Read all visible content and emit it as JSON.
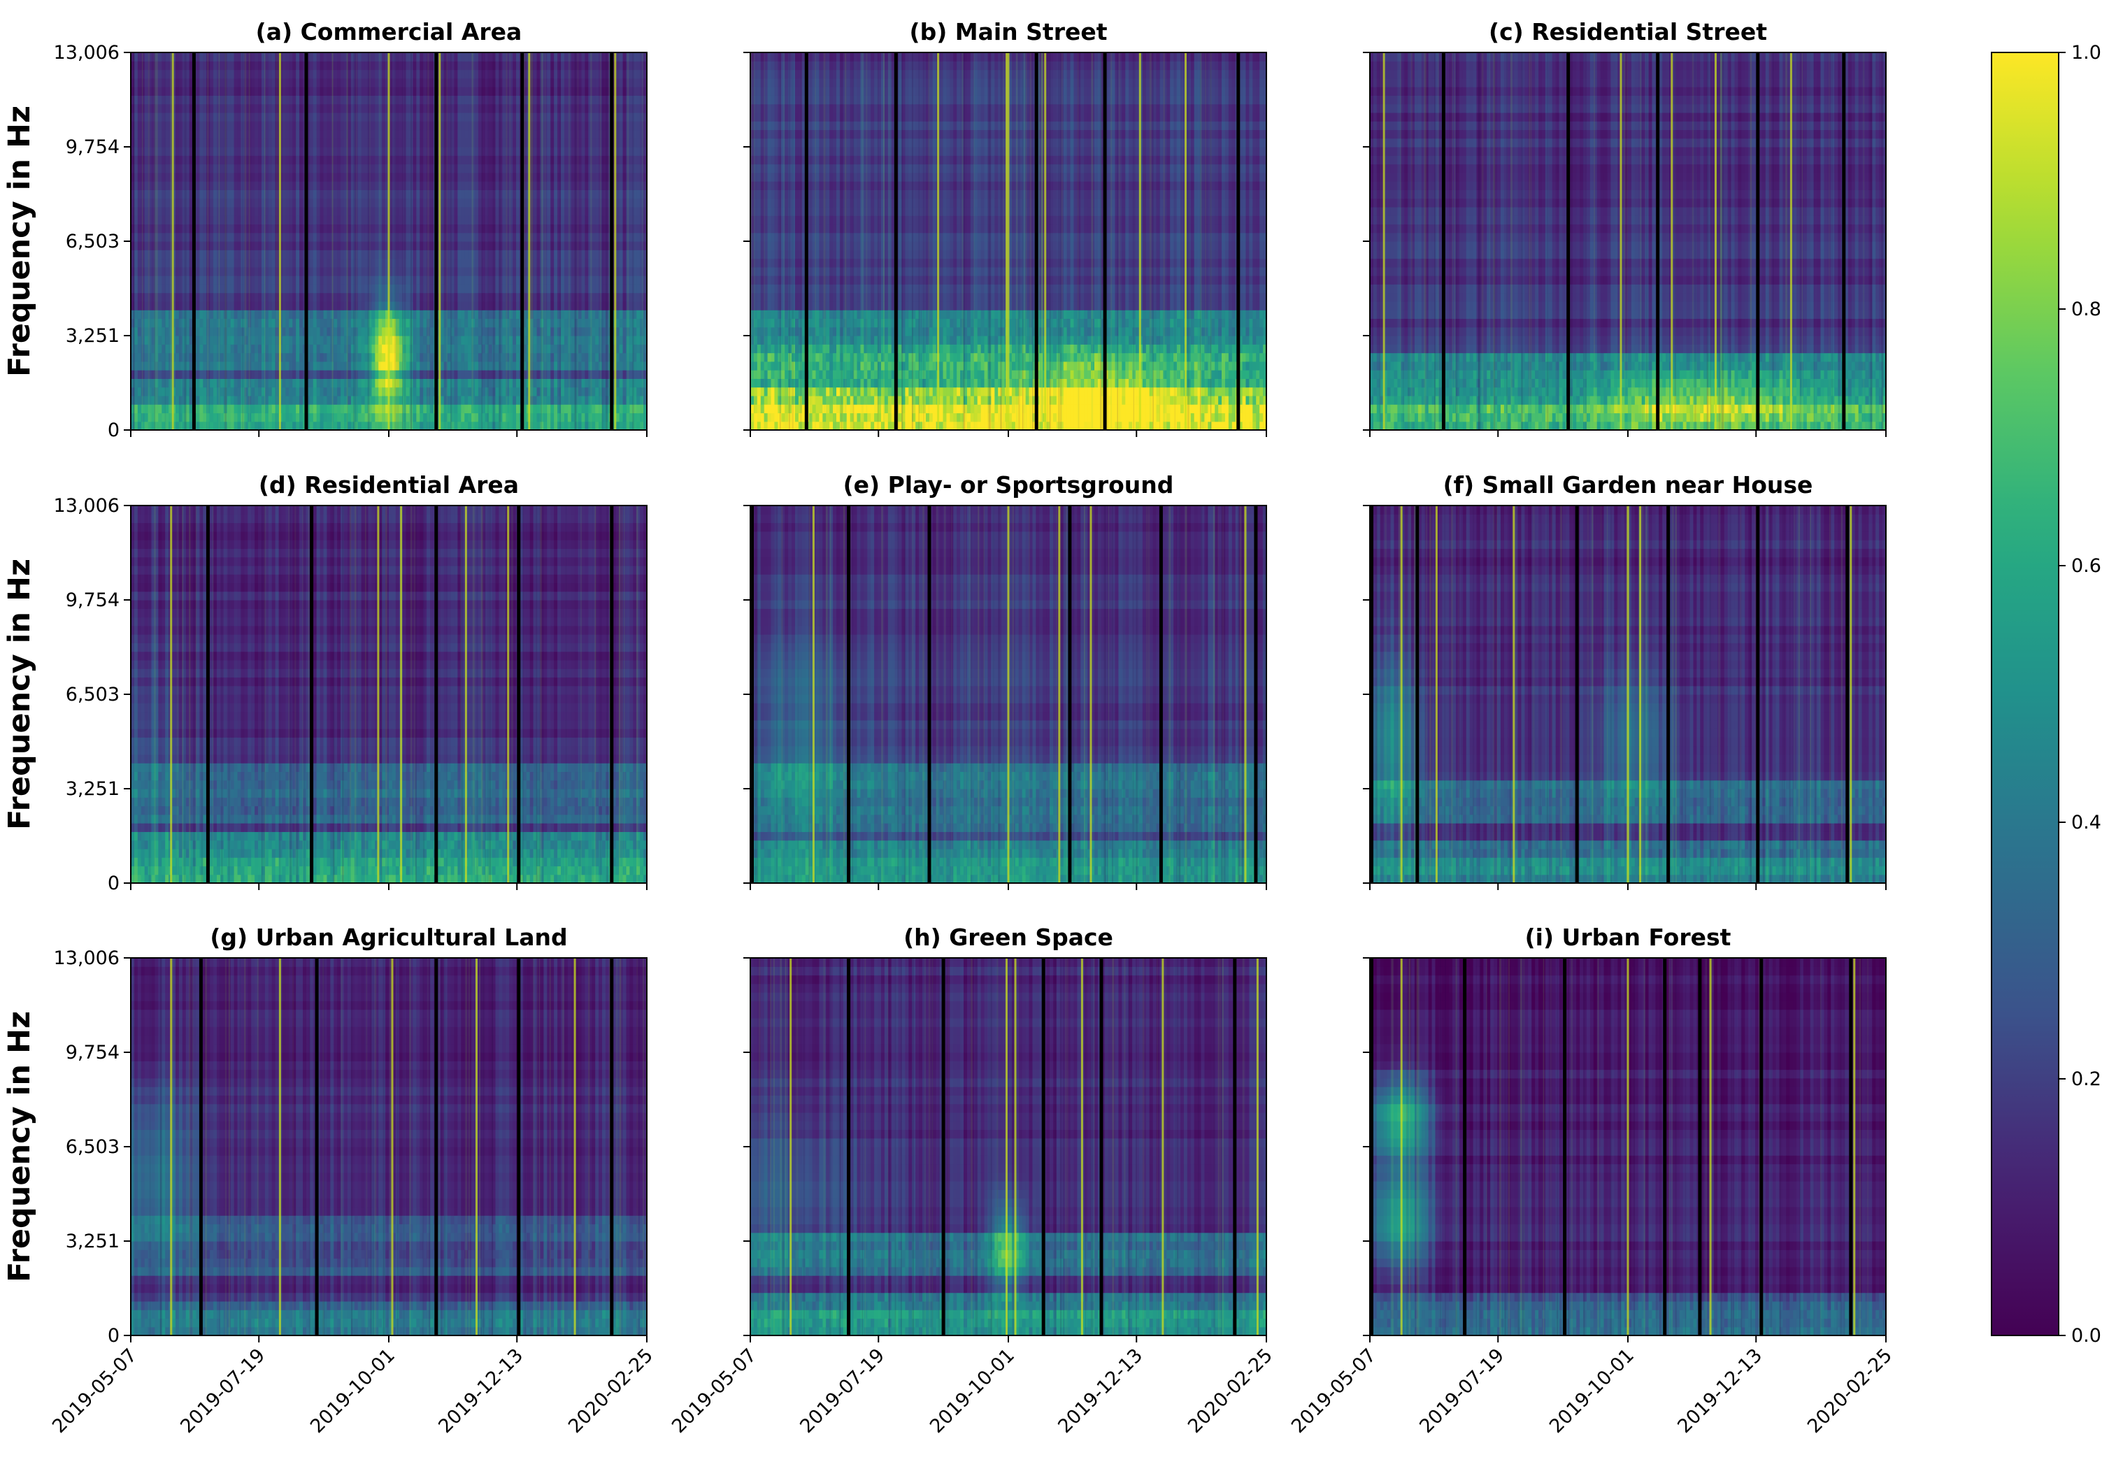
{
  "chart_data": {
    "type": "heatmap",
    "colormap": "viridis",
    "ylabel": "Frequency in Hz",
    "y_ticks": [
      0,
      3251,
      6503,
      9754,
      13006
    ],
    "y_tick_labels": [
      "0",
      "3,251",
      "6,503",
      "9,754",
      "13,006"
    ],
    "ylim": [
      0,
      13006
    ],
    "x_ticks": [
      "2019-05-07",
      "2019-07-19",
      "2019-10-01",
      "2019-12-13",
      "2020-02-25"
    ],
    "xlim": [
      "2019-05-07",
      "2020-02-25"
    ],
    "colorbar": {
      "range": [
        0.0,
        1.0
      ],
      "ticks": [
        0.0,
        0.2,
        0.4,
        0.6,
        0.8,
        1.0
      ],
      "tick_labels": [
        "0.0",
        "0.2",
        "0.4",
        "0.6",
        "0.8",
        "1.0"
      ]
    },
    "panels": [
      {
        "title": "(a) Commercial Area",
        "gaps": [
          "2019-06-12",
          "2019-08-15",
          "2019-10-28",
          "2019-12-16",
          "2020-02-05"
        ],
        "bright_lines": [
          "2019-05-31",
          "2019-07-31",
          "2019-10-01",
          "2019-10-30",
          "2019-12-20",
          "2020-02-07"
        ],
        "bands": [
          [
            0,
            1800,
            0.28
          ],
          [
            2000,
            4000,
            0.22
          ]
        ],
        "blobs": [
          [
            "2019-10-01",
            2500,
            10,
            1800,
            0.65
          ]
        ],
        "level": 0.16,
        "bottom_boost": 0.15
      },
      {
        "title": "(b) Main Street",
        "gaps": [
          "2019-06-08",
          "2019-07-29",
          "2019-10-17",
          "2019-11-25",
          "2020-02-09"
        ],
        "bright_lines": [
          "2019-08-22",
          "2019-09-30",
          "2019-10-01",
          "2019-10-22",
          "2019-12-15",
          "2020-01-10"
        ],
        "bands": [
          [
            0,
            1500,
            0.62
          ],
          [
            1500,
            3000,
            0.42
          ],
          [
            3000,
            4000,
            0.25
          ]
        ],
        "blobs": [
          [
            "2019-11-20",
            1200,
            40,
            1200,
            0.3
          ]
        ],
        "level": 0.2,
        "bottom_boost": 0.15
      },
      {
        "title": "(c) Residential Street",
        "gaps": [
          "2019-06-18",
          "2019-08-28",
          "2019-10-18",
          "2019-12-14",
          "2020-02-01"
        ],
        "bright_lines": [
          "2019-05-15",
          "2019-09-27",
          "2019-10-26",
          "2019-11-20",
          "2020-01-02"
        ],
        "bands": [
          [
            0,
            1300,
            0.4
          ],
          [
            1300,
            2600,
            0.3
          ]
        ],
        "blobs": [
          [
            "2019-11-15",
            1000,
            60,
            1000,
            0.28
          ]
        ],
        "level": 0.16,
        "bottom_boost": 0.1
      },
      {
        "title": "(d) Residential Area",
        "gaps": [
          "2019-06-20",
          "2019-08-18",
          "2019-10-28",
          "2019-12-14",
          "2020-02-05"
        ],
        "bright_lines": [
          "2019-05-30",
          "2019-09-25",
          "2019-10-08",
          "2019-11-14",
          "2019-12-08"
        ],
        "bands": [
          [
            0,
            1800,
            0.32
          ],
          [
            2000,
            4000,
            0.18
          ]
        ],
        "blobs": [
          [
            "2019-05-15",
            5000,
            20,
            3500,
            0.1
          ]
        ],
        "level": 0.14,
        "bottom_boost": 0.12
      },
      {
        "title": "(e) Play- or Sportsground",
        "gaps": [
          "2019-05-08",
          "2019-07-02",
          "2019-08-17",
          "2019-11-05",
          "2019-12-27",
          "2020-02-19"
        ],
        "bright_lines": [
          "2019-06-12",
          "2019-10-01",
          "2019-10-30",
          "2019-11-17",
          "2020-02-13"
        ],
        "bands": [
          [
            0,
            1500,
            0.25
          ],
          [
            1800,
            4000,
            0.2
          ]
        ],
        "blobs": [
          [
            "2019-06-05",
            5000,
            30,
            3500,
            0.16
          ]
        ],
        "level": 0.17,
        "bottom_boost": 0.1
      },
      {
        "title": "(f) Small Garden near House",
        "gaps": [
          "2019-05-08",
          "2019-06-03",
          "2019-09-02",
          "2019-10-24",
          "2019-12-14",
          "2020-02-03"
        ],
        "bright_lines": [
          "2019-05-25",
          "2019-06-14",
          "2019-07-28",
          "2019-10-01",
          "2019-10-08",
          "2020-02-05"
        ],
        "bands": [
          [
            0,
            1500,
            0.22
          ],
          [
            2000,
            3500,
            0.18
          ]
        ],
        "blobs": [
          [
            "2019-05-20",
            5000,
            15,
            2800,
            0.32
          ],
          [
            "2019-10-05",
            5000,
            20,
            2500,
            0.22
          ]
        ],
        "level": 0.14,
        "bottom_boost": 0.08
      },
      {
        "title": "(g) Urban Agricultural Land",
        "gaps": [
          "2019-06-16",
          "2019-08-21",
          "2019-10-28",
          "2019-12-14",
          "2020-02-05"
        ],
        "bright_lines": [
          "2019-05-30",
          "2019-07-31",
          "2019-10-03",
          "2019-11-20",
          "2020-01-15"
        ],
        "bands": [
          [
            0,
            1200,
            0.2
          ],
          [
            2000,
            4000,
            0.12
          ]
        ],
        "blobs": [
          [
            "2019-05-20",
            5500,
            25,
            3000,
            0.25
          ]
        ],
        "level": 0.13,
        "bottom_boost": 0.08
      },
      {
        "title": "(h) Green Space",
        "gaps": [
          "2019-07-02",
          "2019-08-25",
          "2019-10-21",
          "2019-11-23",
          "2020-02-07"
        ],
        "bright_lines": [
          "2019-05-30",
          "2019-09-30",
          "2019-10-05",
          "2019-11-12",
          "2019-12-28",
          "2020-02-20"
        ],
        "bands": [
          [
            0,
            1600,
            0.25
          ],
          [
            2000,
            3500,
            0.2
          ]
        ],
        "blobs": [
          [
            "2019-05-25",
            5000,
            40,
            3000,
            0.14
          ],
          [
            "2019-10-01",
            3000,
            10,
            1500,
            0.4
          ]
        ],
        "level": 0.14,
        "bottom_boost": 0.12
      },
      {
        "title": "(i) Urban Forest",
        "gaps": [
          "2019-05-08",
          "2019-06-30",
          "2019-08-26",
          "2019-10-22",
          "2019-11-11",
          "2019-12-16",
          "2020-02-05"
        ],
        "bright_lines": [
          "2019-05-25",
          "2019-10-01",
          "2019-11-17",
          "2020-02-07"
        ],
        "bands": [
          [
            0,
            1500,
            0.18
          ]
        ],
        "blobs": [
          [
            "2019-05-24",
            7500,
            18,
            1400,
            0.55
          ],
          [
            "2019-05-24",
            4000,
            18,
            1800,
            0.45
          ]
        ],
        "level": 0.09,
        "bottom_boost": 0.08
      }
    ]
  }
}
